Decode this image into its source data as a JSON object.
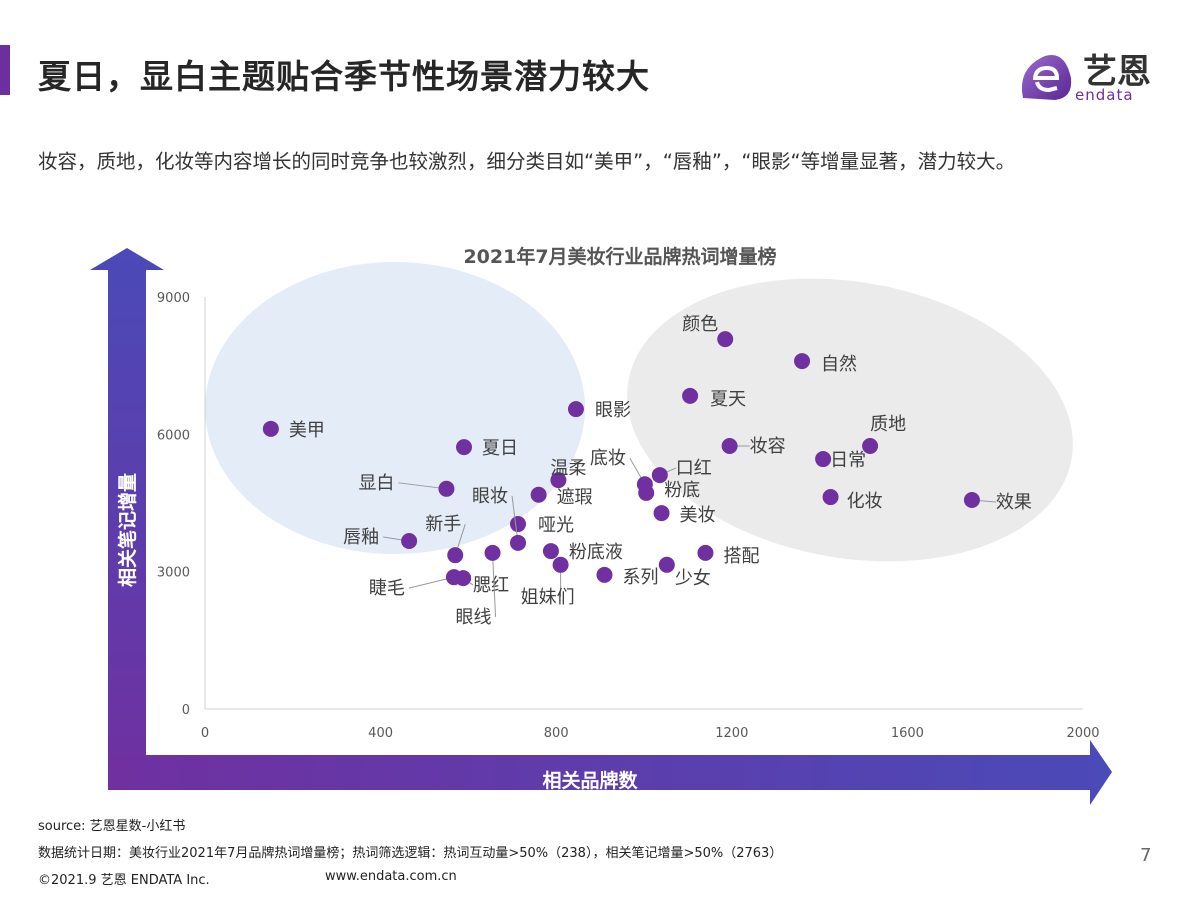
{
  "header": {
    "title": "夏日，显白主题贴合季节性场景潜力较大",
    "logo_cn": "艺恩",
    "logo_en": "endata",
    "brand_color": "#6b2fa0"
  },
  "subtitle": "妆容，质地，化妆等内容增长的同时竞争也较激烈，细分类目如“美甲”，“唇釉”，“眼影“等增量显著，潜力较大。",
  "chart_data": {
    "type": "scatter",
    "title": "2021年7月美妆行业品牌热词增量榜",
    "xlabel": "相关品牌数",
    "ylabel": "相关笔记增量",
    "xlim": [
      0,
      2000
    ],
    "ylim": [
      0,
      9000
    ],
    "xticks": [
      0,
      400,
      800,
      1200,
      1600,
      2000
    ],
    "yticks": [
      0,
      3000,
      6000,
      9000
    ],
    "grid": false,
    "point_color": "#7030a0",
    "points": [
      {
        "label": "美甲",
        "x": 150,
        "y": 6120
      },
      {
        "label": "夏日",
        "x": 590,
        "y": 5720
      },
      {
        "label": "显白",
        "x": 550,
        "y": 4810
      },
      {
        "label": "唇釉",
        "x": 465,
        "y": 3670
      },
      {
        "label": "新手",
        "x": 570,
        "y": 3360
      },
      {
        "label": "睫毛",
        "x": 567,
        "y": 2880
      },
      {
        "label": "腮红",
        "x": 588,
        "y": 2860
      },
      {
        "label": "眼线",
        "x": 655,
        "y": 3410
      },
      {
        "label": "哑光",
        "x": 713,
        "y": 4040
      },
      {
        "label": "眼妆",
        "x": 713,
        "y": 3630
      },
      {
        "label": "遮瑕",
        "x": 760,
        "y": 4680
      },
      {
        "label": "温柔",
        "x": 805,
        "y": 5000
      },
      {
        "label": "眼影",
        "x": 845,
        "y": 6550
      },
      {
        "label": "粉底液",
        "x": 788,
        "y": 3450
      },
      {
        "label": "姐妹们",
        "x": 810,
        "y": 3150
      },
      {
        "label": "系列",
        "x": 910,
        "y": 2930
      },
      {
        "label": "少女",
        "x": 1052,
        "y": 3150
      },
      {
        "label": "搭配",
        "x": 1140,
        "y": 3410
      },
      {
        "label": "美妆",
        "x": 1040,
        "y": 4280
      },
      {
        "label": "底妆",
        "x": 1002,
        "y": 4910
      },
      {
        "label": "粉底",
        "x": 1005,
        "y": 4720
      },
      {
        "label": "口红",
        "x": 1036,
        "y": 5110
      },
      {
        "label": "夏天",
        "x": 1105,
        "y": 6840
      },
      {
        "label": "颜色",
        "x": 1185,
        "y": 8080
      },
      {
        "label": "妆容",
        "x": 1195,
        "y": 5745
      },
      {
        "label": "自然",
        "x": 1360,
        "y": 7600
      },
      {
        "label": "日常",
        "x": 1408,
        "y": 5460
      },
      {
        "label": "质地",
        "x": 1515,
        "y": 5745
      },
      {
        "label": "化妆",
        "x": 1425,
        "y": 4630
      },
      {
        "label": "效果",
        "x": 1747,
        "y": 4565
      }
    ]
  },
  "footer": {
    "source": "source: 艺恩星数-小红书",
    "note": "数据统计日期：美妆行业2021年7月品牌热词增量榜；热词筛选逻辑：热词互动量>50%（238），相关笔记增量>50%（2763）",
    "copyright": "©2021.9 艺恩 ENDATA Inc.",
    "website": "www.endata.com.cn",
    "page": "7"
  }
}
